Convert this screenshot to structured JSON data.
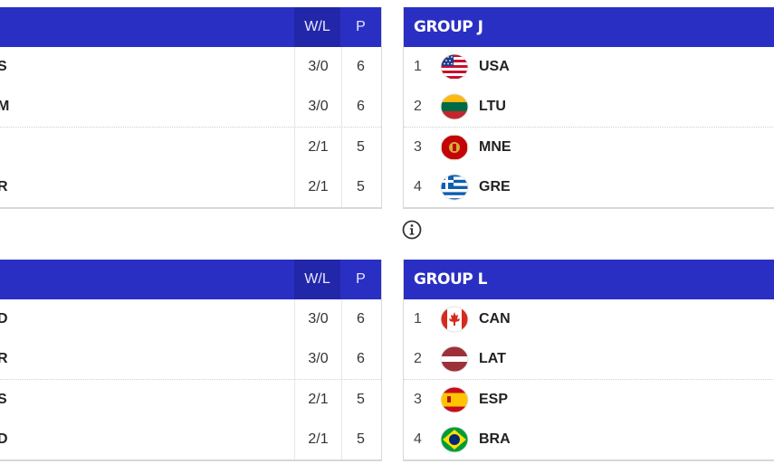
{
  "groups": [
    {
      "id": "top-left",
      "headers": {
        "wl": "W/L",
        "p": "P"
      },
      "rows": [
        {
          "team_partial": "S",
          "wl": "3/0",
          "p": "6"
        },
        {
          "team_partial": "M",
          "wl": "3/0",
          "p": "6"
        },
        {
          "team_partial": "",
          "wl": "2/1",
          "p": "5"
        },
        {
          "team_partial": "R",
          "wl": "2/1",
          "p": "5"
        }
      ]
    },
    {
      "id": "group-j",
      "title": "GROUP J",
      "rows": [
        {
          "rank": "1",
          "code": "USA",
          "flag": "usa-flag-icon"
        },
        {
          "rank": "2",
          "code": "LTU",
          "flag": "lithuania-flag-icon"
        },
        {
          "rank": "3",
          "code": "MNE",
          "flag": "montenegro-flag-icon"
        },
        {
          "rank": "4",
          "code": "GRE",
          "flag": "greece-flag-icon"
        }
      ]
    },
    {
      "id": "bottom-left",
      "headers": {
        "wl": "W/L",
        "p": "P"
      },
      "rows": [
        {
          "team_partial": "D",
          "wl": "3/0",
          "p": "6"
        },
        {
          "team_partial": "R",
          "wl": "3/0",
          "p": "6"
        },
        {
          "team_partial": "S",
          "wl": "2/1",
          "p": "5"
        },
        {
          "team_partial": "D",
          "wl": "2/1",
          "p": "5"
        }
      ]
    },
    {
      "id": "group-l",
      "title": "GROUP L",
      "rows": [
        {
          "rank": "1",
          "code": "CAN",
          "flag": "canada-flag-icon"
        },
        {
          "rank": "2",
          "code": "LAT",
          "flag": "latvia-flag-icon"
        },
        {
          "rank": "3",
          "code": "ESP",
          "flag": "spain-flag-icon"
        },
        {
          "rank": "4",
          "code": "BRA",
          "flag": "brazil-flag-icon"
        }
      ]
    }
  ],
  "info_icon": "info-icon",
  "colors": {
    "header_blue": "#2a2fc4",
    "header_blue_dark": "#2226a8"
  }
}
